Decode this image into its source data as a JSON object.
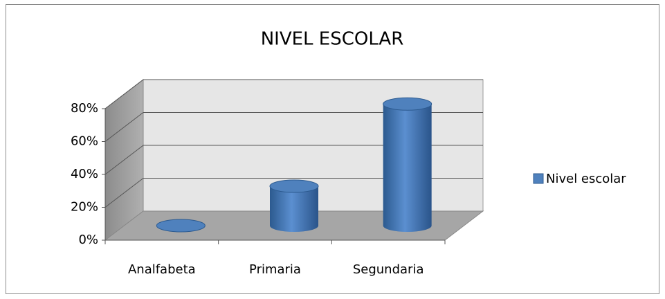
{
  "chart_data": {
    "type": "bar3d",
    "title": "NIVEL ESCOLAR",
    "categories": [
      "Analfabeta",
      "Primaria",
      "Segundaria"
    ],
    "series": [
      {
        "name": "Nivel escolar",
        "color": "#4f81bd",
        "values": [
          0,
          24,
          74
        ]
      }
    ],
    "ylim": [
      0,
      80
    ],
    "yticks": [
      {
        "value": 0,
        "label": "0%"
      },
      {
        "value": 20,
        "label": "20%"
      },
      {
        "value": 40,
        "label": "40%"
      },
      {
        "value": 60,
        "label": "60%"
      },
      {
        "value": 80,
        "label": "80%"
      }
    ],
    "grid": true,
    "legend": "right"
  }
}
